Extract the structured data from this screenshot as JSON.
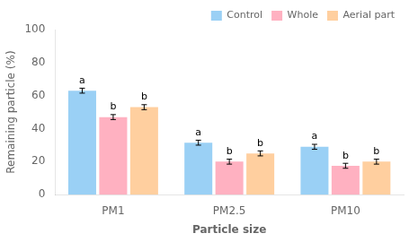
{
  "chart_data": {
    "type": "bar",
    "categories": [
      "PM1",
      "PM2.5",
      "PM10"
    ],
    "series": [
      {
        "name": "Control",
        "values": [
          63.0,
          31.5,
          29.0
        ],
        "errors": [
          1.5,
          1.5,
          1.5
        ],
        "annotations": [
          "a",
          "a",
          "a"
        ]
      },
      {
        "name": "Whole",
        "values": [
          47.0,
          20.0,
          17.5
        ],
        "errors": [
          1.5,
          1.5,
          1.5
        ],
        "annotations": [
          "b",
          "b",
          "b"
        ]
      },
      {
        "name": "Aerial part",
        "values": [
          53.0,
          25.0,
          20.0
        ],
        "errors": [
          1.5,
          1.5,
          1.5
        ],
        "annotations": [
          "b",
          "b",
          "b"
        ]
      }
    ],
    "xlabel": "Particle size",
    "ylabel": "Remaining particle (%)",
    "ylim": [
      0,
      100
    ],
    "yticks": [
      0,
      20,
      40,
      60,
      80,
      100
    ],
    "grid": false,
    "legend": "upper right"
  }
}
